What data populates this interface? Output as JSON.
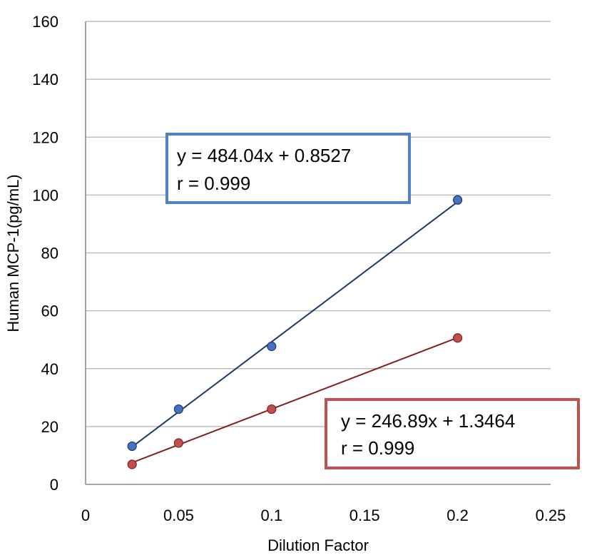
{
  "chart_data": {
    "type": "scatter",
    "xlabel": "Dilution Factor",
    "ylabel": "Human MCP-1(pg/mL)",
    "xlim": [
      0,
      0.25
    ],
    "ylim": [
      0,
      160
    ],
    "x_ticks": [
      0,
      0.05,
      0.1,
      0.15,
      0.2,
      0.25
    ],
    "x_tick_labels": [
      "0",
      "0.05",
      "0.1",
      "0.15",
      "0.2",
      "0.25"
    ],
    "y_ticks": [
      0,
      20,
      40,
      60,
      80,
      100,
      120,
      140,
      160
    ],
    "y_tick_labels": [
      "0",
      "20",
      "40",
      "60",
      "80",
      "100",
      "120",
      "140",
      "160"
    ],
    "grid": "horizontal",
    "series": [
      {
        "color": "#4472C4",
        "line_color": "#1F3864",
        "points": [
          {
            "x": 0.025,
            "y": 13.2
          },
          {
            "x": 0.05,
            "y": 26.0
          },
          {
            "x": 0.1,
            "y": 47.7
          },
          {
            "x": 0.2,
            "y": 98.3
          }
        ],
        "trendline": {
          "slope": 484.04,
          "intercept": 0.8527
        },
        "equation": "y = 484.04x + 0.8527",
        "r_text": "r = 0.999",
        "box_color": "#4F81BD"
      },
      {
        "color": "#C0504D",
        "line_color": "#7F1F1F",
        "points": [
          {
            "x": 0.025,
            "y": 6.9
          },
          {
            "x": 0.05,
            "y": 14.3
          },
          {
            "x": 0.1,
            "y": 26.0
          },
          {
            "x": 0.2,
            "y": 50.6
          }
        ],
        "trendline": {
          "slope": 246.89,
          "intercept": 1.3464
        },
        "equation": "y = 246.89x + 1.3464",
        "r_text": "r = 0.999",
        "box_color": "#C0504D"
      }
    ]
  }
}
